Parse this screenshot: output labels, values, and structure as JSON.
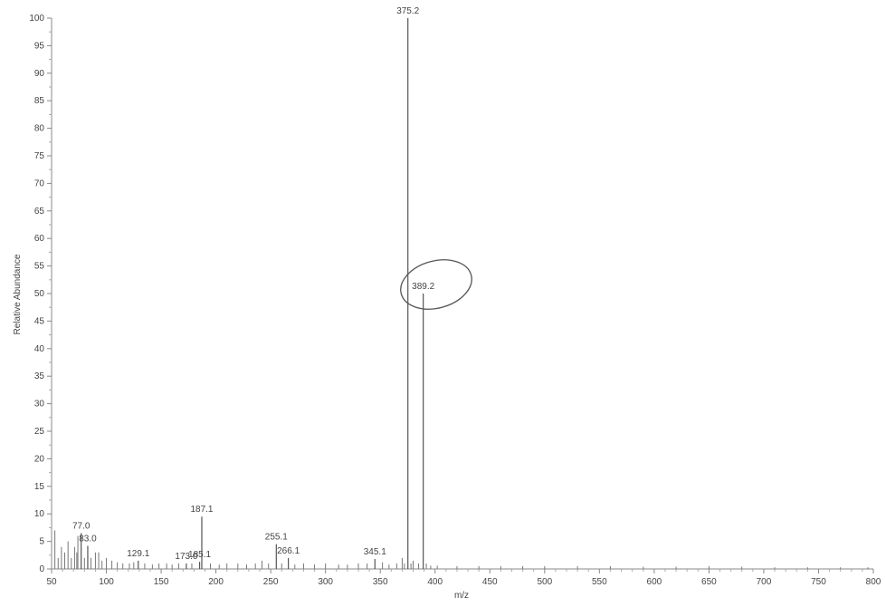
{
  "chart_data": {
    "type": "bar",
    "xlabel": "m/z",
    "ylabel": "Relative Abundance",
    "xlim": [
      50,
      800
    ],
    "ylim": [
      0,
      100
    ],
    "grid": false,
    "legend": "none",
    "xticks": [
      {
        "value": 50,
        "label": "50"
      },
      {
        "value": 100,
        "label": "100"
      },
      {
        "value": 150,
        "label": "150"
      },
      {
        "value": 200,
        "label": "200"
      },
      {
        "value": 250,
        "label": "250"
      },
      {
        "value": 300,
        "label": "300"
      },
      {
        "value": 350,
        "label": "350"
      },
      {
        "value": 400,
        "label": "400"
      },
      {
        "value": 450,
        "label": "450"
      },
      {
        "value": 500,
        "label": "500"
      },
      {
        "value": 550,
        "label": "550"
      },
      {
        "value": 600,
        "label": "600"
      },
      {
        "value": 650,
        "label": "650"
      },
      {
        "value": 700,
        "label": "700"
      },
      {
        "value": 750,
        "label": "750"
      },
      {
        "value": 800,
        "label": "800"
      }
    ],
    "yticks": [
      0,
      5,
      10,
      15,
      20,
      25,
      30,
      35,
      40,
      45,
      50,
      55,
      60,
      65,
      70,
      75,
      80,
      85,
      90,
      95,
      100
    ],
    "peaks": [
      {
        "mz": 375.2,
        "abundance": 100,
        "label": "375.2"
      },
      {
        "mz": 389.2,
        "abundance": 50,
        "label": "389.2",
        "circled": true
      },
      {
        "mz": 187.1,
        "abundance": 9.5,
        "label": "187.1"
      },
      {
        "mz": 77.0,
        "abundance": 6.5,
        "label": "77.0"
      },
      {
        "mz": 83.0,
        "abundance": 4.2,
        "label": "83.0"
      },
      {
        "mz": 129.1,
        "abundance": 1.5,
        "label": "129.1"
      },
      {
        "mz": 173.0,
        "abundance": 1.0,
        "label": "173.0"
      },
      {
        "mz": 185.1,
        "abundance": 1.3,
        "label": "185.1"
      },
      {
        "mz": 255.1,
        "abundance": 4.5,
        "label": "255.1"
      },
      {
        "mz": 266.1,
        "abundance": 2.0,
        "label": "266.1"
      },
      {
        "mz": 345.1,
        "abundance": 1.8,
        "label": "345.1"
      }
    ],
    "minor_peaks": [
      [
        53,
        7
      ],
      [
        56,
        2
      ],
      [
        59,
        4
      ],
      [
        62,
        3
      ],
      [
        65,
        5
      ],
      [
        68,
        2
      ],
      [
        71,
        4
      ],
      [
        73,
        3
      ],
      [
        74,
        6
      ],
      [
        80,
        2
      ],
      [
        86,
        2
      ],
      [
        90,
        3
      ],
      [
        93,
        3
      ],
      [
        96,
        1.5
      ],
      [
        100,
        2
      ],
      [
        105,
        1.5
      ],
      [
        110,
        1.2
      ],
      [
        115,
        1
      ],
      [
        121,
        1
      ],
      [
        125,
        1.2
      ],
      [
        135,
        1
      ],
      [
        142,
        0.8
      ],
      [
        148,
        1
      ],
      [
        155,
        1
      ],
      [
        160,
        0.8
      ],
      [
        166,
        1
      ],
      [
        178,
        1
      ],
      [
        195,
        1
      ],
      [
        203,
        0.8
      ],
      [
        210,
        1
      ],
      [
        220,
        1
      ],
      [
        228,
        0.8
      ],
      [
        236,
        1
      ],
      [
        242,
        1.5
      ],
      [
        248,
        1
      ],
      [
        260,
        1
      ],
      [
        272,
        0.8
      ],
      [
        280,
        1
      ],
      [
        290,
        0.8
      ],
      [
        300,
        1
      ],
      [
        312,
        0.8
      ],
      [
        320,
        0.8
      ],
      [
        330,
        1
      ],
      [
        338,
        1
      ],
      [
        352,
        1.2
      ],
      [
        358,
        0.8
      ],
      [
        365,
        1
      ],
      [
        370,
        2
      ],
      [
        372,
        1
      ],
      [
        378,
        1
      ],
      [
        380,
        1.5
      ],
      [
        385,
        1
      ],
      [
        392,
        1
      ],
      [
        396,
        0.6
      ],
      [
        402,
        0.6
      ],
      [
        420,
        0.5
      ],
      [
        440,
        0.5
      ],
      [
        460,
        0.5
      ],
      [
        480,
        0.5
      ],
      [
        500,
        0.5
      ],
      [
        530,
        0.5
      ],
      [
        560,
        0.5
      ],
      [
        590,
        0.4
      ],
      [
        620,
        0.4
      ],
      [
        650,
        0.5
      ],
      [
        680,
        0.4
      ],
      [
        710,
        0.3
      ],
      [
        740,
        0.3
      ],
      [
        770,
        0.3
      ],
      [
        795,
        0.3
      ]
    ]
  }
}
